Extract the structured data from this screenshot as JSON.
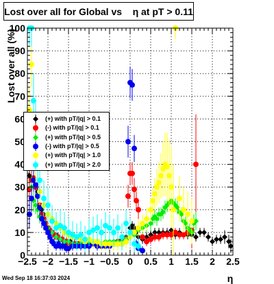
{
  "title": "Lost over all for Global vs    η at pT > 0.11",
  "timestamp": "Wed Sep 18 16:37:03 2024",
  "chart_data": {
    "type": "scatter",
    "title": "Lost over all for Global vs    η at pT > 0.11",
    "xlabel": "η",
    "ylabel": "Lost over all (%)",
    "xlim": [
      -2.5,
      2.5
    ],
    "ylim": [
      0,
      100
    ],
    "x_ticks": [
      -2.5,
      -2,
      -1.5,
      -1,
      -0.5,
      0,
      0.5,
      1,
      1.5,
      2,
      2.5
    ],
    "x_tick_labels": [
      "−2.5",
      "−2",
      "−1.5",
      "−1",
      "−0.5",
      "0",
      "0.5",
      "1",
      "1.5",
      "2",
      "2.5"
    ],
    "y_ticks": [
      0,
      10,
      20,
      30,
      40,
      50,
      60,
      70,
      80,
      90,
      100
    ],
    "y_tick_labels": [
      "0",
      "10",
      "20",
      "30",
      "40",
      "50",
      "60",
      "70",
      "80",
      "90",
      "100"
    ],
    "grid": true,
    "legend_position": "left",
    "series": [
      {
        "name": "(+) with pT/|q| > 0.1",
        "color": "#000000",
        "x": [
          -2.45,
          -2.4,
          -2.35,
          -2.3,
          -2.25,
          -2.2,
          -2.15,
          -2.1,
          -2.05,
          -2.0,
          -1.95,
          -1.9,
          -1.85,
          -1.8,
          -1.75,
          -1.7,
          -1.65,
          -1.6,
          -1.55,
          -1.5,
          -1.45,
          -1.4,
          -1.35,
          -1.3,
          -1.25,
          -1.2,
          -1.1,
          -1.0,
          -0.9,
          -0.8,
          -0.7,
          -0.6,
          -0.5,
          -0.4,
          -0.3,
          -0.2,
          -0.1,
          0.0,
          0.05,
          0.1,
          0.15,
          0.2,
          0.3,
          0.4,
          0.5,
          0.6,
          0.7,
          0.8,
          0.9,
          1.0,
          1.1,
          1.2,
          1.3,
          1.4,
          1.5,
          1.6,
          1.7,
          1.8,
          1.9,
          2.0,
          2.1,
          2.2,
          2.3,
          2.4,
          2.45
        ],
        "y": [
          35,
          34,
          33,
          30,
          28,
          22,
          20,
          18,
          14,
          12,
          11,
          10,
          9,
          9,
          8,
          7,
          7,
          6,
          6,
          6,
          6,
          5,
          5,
          5,
          5,
          5,
          5,
          5,
          5,
          5,
          5,
          5,
          5,
          6,
          6,
          7,
          8,
          12,
          13,
          12,
          10,
          8,
          7,
          8,
          9,
          10,
          10,
          10,
          10,
          11,
          9,
          10,
          9,
          9,
          9,
          8,
          10,
          10,
          8,
          6,
          7,
          7,
          8,
          6,
          4
        ],
        "err": [
          5,
          5,
          5,
          5,
          4,
          3,
          3,
          3,
          2,
          2,
          2,
          2,
          2,
          2,
          2,
          2,
          2,
          2,
          2,
          2,
          2,
          2,
          2,
          2,
          2,
          2,
          2,
          2,
          2,
          2,
          2,
          2,
          2,
          2,
          2,
          2,
          2,
          2,
          2,
          2,
          2,
          2,
          2,
          2,
          2,
          2,
          2,
          2,
          2,
          2,
          2,
          2,
          2,
          2,
          2,
          2,
          2,
          2,
          2,
          2,
          2,
          2,
          3,
          3,
          3
        ]
      },
      {
        "name": "(-) with pT/|q| > 0.1",
        "color": "#ff0000",
        "x": [
          -2.45,
          -2.4,
          -2.35,
          -2.3,
          -2.25,
          -2.2,
          -2.15,
          -2.1,
          -2.05,
          -2.0,
          -1.95,
          -1.9,
          -1.85,
          -1.8,
          -1.75,
          -1.7,
          -1.65,
          -1.6,
          -1.55,
          -1.5,
          -1.4,
          -1.3,
          -1.2,
          -1.1,
          -1.0,
          -0.9,
          -0.8,
          -0.7,
          -0.6,
          -0.5,
          -0.4,
          -0.3,
          -0.2,
          -0.1,
          -0.05,
          0.0,
          0.05,
          0.1,
          0.15,
          0.2,
          0.3,
          0.4,
          0.5,
          0.6,
          0.7,
          0.8,
          0.9,
          1.0,
          1.1,
          1.2,
          1.3,
          1.4,
          1.5,
          1.6
        ],
        "y": [
          29,
          33,
          34,
          30,
          26,
          22,
          18,
          16,
          14,
          12,
          11,
          10,
          9,
          8,
          8,
          7,
          7,
          6,
          6,
          5,
          5,
          5,
          5,
          5,
          5,
          5,
          5,
          5,
          5,
          5,
          5,
          6,
          6,
          7,
          26,
          36,
          36,
          29,
          24,
          20,
          8,
          6,
          7,
          8,
          8,
          9,
          9,
          9,
          10,
          9,
          9,
          10,
          11,
          40
        ],
        "err": [
          5,
          5,
          5,
          5,
          4,
          4,
          3,
          3,
          3,
          2,
          2,
          2,
          2,
          2,
          2,
          2,
          2,
          2,
          2,
          2,
          2,
          2,
          2,
          2,
          2,
          2,
          2,
          2,
          2,
          2,
          2,
          2,
          2,
          2,
          5,
          5,
          5,
          5,
          4,
          4,
          2,
          2,
          2,
          2,
          2,
          2,
          2,
          2,
          2,
          2,
          2,
          2,
          8,
          22
        ]
      },
      {
        "name": "(+) with pT/|q| > 0.5",
        "color": "#00ee00",
        "x": [
          -2.45,
          -2.4,
          -2.35,
          -2.3,
          -2.25,
          -2.2,
          -2.1,
          -2.0,
          -1.9,
          -1.8,
          -1.7,
          -1.6,
          -1.5,
          -1.4,
          -1.3,
          -1.2,
          -1.1,
          -1.0,
          -0.9,
          -0.8,
          -0.7,
          -0.6,
          -0.5,
          -0.4,
          -0.3,
          -0.2,
          -0.1,
          0.0,
          0.1,
          0.2,
          0.3,
          0.4,
          0.5,
          0.55,
          0.6,
          0.65,
          0.7,
          0.75,
          0.8,
          0.85,
          0.9,
          0.95,
          1.0,
          1.05,
          1.1,
          1.15,
          1.2,
          1.25,
          1.3,
          1.35,
          1.4,
          1.45,
          1.5,
          1.55,
          1.6
        ],
        "y": [
          47,
          30,
          24,
          22,
          20,
          17,
          15,
          12,
          10,
          8,
          7,
          6,
          6,
          5,
          5,
          5,
          5,
          6,
          5,
          6,
          5,
          6,
          6,
          6,
          6,
          6,
          7,
          8,
          9,
          11,
          12,
          13,
          14,
          16,
          17,
          16,
          18,
          18,
          19,
          21,
          22,
          23,
          24,
          23,
          22,
          21,
          19,
          18,
          15,
          14,
          12,
          11,
          10,
          14,
          15
        ],
        "err": [
          6,
          5,
          5,
          4,
          4,
          3,
          3,
          3,
          2,
          2,
          2,
          2,
          2,
          2,
          2,
          2,
          2,
          2,
          2,
          2,
          2,
          2,
          2,
          2,
          2,
          2,
          2,
          2,
          2,
          3,
          3,
          3,
          3,
          3,
          3,
          3,
          3,
          3,
          3,
          3,
          3,
          3,
          3,
          3,
          3,
          3,
          3,
          3,
          3,
          3,
          3,
          3,
          3,
          4,
          4
        ]
      },
      {
        "name": "(-) with pT/|q| > 0.5",
        "color": "#0000ee",
        "x": [
          -2.45,
          -2.4,
          -2.35,
          -2.3,
          -2.25,
          -2.2,
          -2.15,
          -2.1,
          -2.05,
          -2.0,
          -1.95,
          -1.9,
          -1.85,
          -1.8,
          -1.75,
          -1.7,
          -1.65,
          -1.6,
          -1.55,
          -1.5,
          -1.4,
          -1.3,
          -1.2,
          -1.1,
          -1.0,
          -0.9,
          -0.8,
          -0.7,
          -0.6,
          -0.5,
          -0.4,
          -0.3,
          -0.2,
          -0.1,
          -0.05,
          0.0,
          0.05,
          0.1,
          0.15,
          0.2,
          0.3
        ],
        "y": [
          18,
          25,
          33,
          31,
          26,
          21,
          16,
          14,
          12,
          10,
          8,
          6,
          5,
          4,
          5,
          4,
          4,
          4,
          3,
          3,
          4,
          4,
          4,
          4,
          4,
          5,
          4,
          4,
          4,
          4,
          5,
          5,
          5,
          6,
          50,
          76,
          75,
          47,
          5,
          3,
          2
        ],
        "err": [
          6,
          6,
          5,
          5,
          5,
          4,
          4,
          3,
          3,
          3,
          2,
          2,
          2,
          2,
          2,
          2,
          2,
          2,
          2,
          2,
          2,
          2,
          2,
          2,
          2,
          2,
          2,
          2,
          2,
          2,
          2,
          2,
          2,
          2,
          7,
          7,
          7,
          6,
          2,
          2,
          2
        ]
      },
      {
        "name": "(+) with pT/|q| > 1.0",
        "color": "#ffff00",
        "x": [
          -2.45,
          -2.4,
          -2.35,
          -2.3,
          -2.2,
          -2.1,
          -2.0,
          -1.9,
          -1.8,
          -1.7,
          -1.6,
          -1.5,
          -1.4,
          -1.3,
          -1.2,
          -1.1,
          -1.0,
          -0.9,
          -0.8,
          -0.7,
          -0.6,
          -0.5,
          -0.4,
          -0.3,
          -0.2,
          -0.1,
          0.0,
          0.1,
          0.2,
          0.3,
          0.4,
          0.5,
          0.55,
          0.6,
          0.65,
          0.7,
          0.75,
          0.8,
          0.85,
          0.9,
          0.95,
          1.0,
          1.05,
          1.1,
          1.2,
          1.3,
          1.4,
          1.5
        ],
        "y": [
          64,
          84,
          50,
          40,
          28,
          22,
          18,
          16,
          14,
          12,
          10,
          9,
          8,
          8,
          7,
          6,
          7,
          6,
          6,
          5,
          5,
          5,
          5,
          5,
          5,
          6,
          8,
          10,
          12,
          14,
          16,
          20,
          24,
          27,
          30,
          32,
          35,
          38,
          40,
          39,
          35,
          30,
          20,
          100,
          25,
          20,
          18,
          15
        ],
        "err": [
          10,
          10,
          10,
          8,
          6,
          5,
          5,
          4,
          4,
          4,
          3,
          3,
          3,
          3,
          3,
          3,
          3,
          3,
          3,
          3,
          3,
          3,
          3,
          3,
          3,
          3,
          3,
          3,
          4,
          4,
          5,
          5,
          6,
          7,
          8,
          9,
          10,
          12,
          14,
          15,
          16,
          18,
          20,
          5,
          10,
          10,
          10,
          10
        ]
      },
      {
        "name": "(+) with pT/|q| > 2.0",
        "color": "#00ffff",
        "x": [
          -2.45,
          -2.4,
          -2.35,
          -2.3,
          -2.25,
          -2.2,
          -2.1,
          -2.0,
          -1.9,
          -1.8,
          -1.7,
          -1.6,
          -1.5,
          -1.4,
          -1.3,
          -1.2,
          -1.1,
          -1.0,
          -0.9,
          -0.8,
          -0.7,
          -0.6,
          -0.5,
          -0.4,
          -0.3,
          -0.2,
          -0.1,
          0.0,
          0.1,
          0.2
        ],
        "y": [
          100,
          100,
          68,
          55,
          42,
          33,
          25,
          22,
          15,
          12,
          13,
          12,
          10,
          9,
          8,
          9,
          7,
          10,
          11,
          12,
          10,
          13,
          12,
          10,
          12,
          8,
          14,
          10,
          5,
          4
        ],
        "err": [
          8,
          8,
          12,
          12,
          10,
          8,
          8,
          8,
          7,
          7,
          7,
          7,
          6,
          6,
          6,
          6,
          6,
          6,
          6,
          6,
          6,
          6,
          6,
          6,
          6,
          6,
          6,
          6,
          4,
          4
        ]
      }
    ]
  }
}
